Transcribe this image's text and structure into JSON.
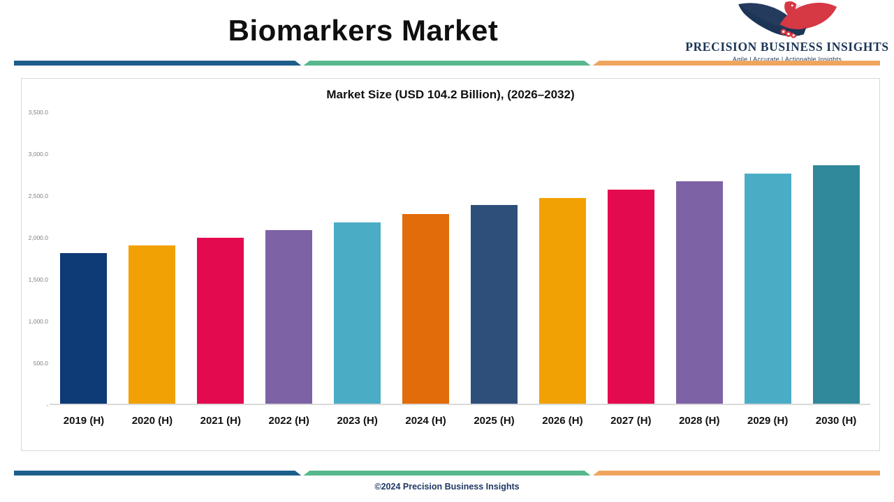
{
  "header": {
    "title": "Biomarkers Market",
    "logo": {
      "icon": "eagle-icon",
      "name": "PRECISION BUSINESS INSIGHTS",
      "tagline": "Agile | Accurate | Actionable Insights"
    }
  },
  "chart": {
    "title": "Market Size (USD 104.2 Billion), (2026–2032)"
  },
  "chart_data": {
    "type": "bar",
    "title": "Market Size (USD 104.2 Billion), (2026–2032)",
    "categories": [
      "2019 (H)",
      "2020 (H)",
      "2021 (H)",
      "2022 (H)",
      "2023 (H)",
      "2024 (H)",
      "2025 (H)",
      "2026 (H)",
      "2027 (H)",
      "2028 (H)",
      "2029 (H)",
      "2030 (H)"
    ],
    "values": [
      1800,
      1890,
      1980,
      2075,
      2170,
      2270,
      2375,
      2460,
      2560,
      2660,
      2750,
      2850
    ],
    "bar_colors": [
      "#0e3a76",
      "#f2a104",
      "#e40a50",
      "#7d63a5",
      "#4bacc6",
      "#e26b0a",
      "#2f4f7b",
      "#f2a104",
      "#e40a50",
      "#7d63a5",
      "#4bacc6",
      "#30899b"
    ],
    "xlabel": "",
    "ylabel": "",
    "ylim": [
      0,
      3500
    ],
    "y_ticks": [
      "3,500.0",
      "3,000.0",
      "2,500.0",
      "2,000.0",
      "1,500.0",
      "1,000.0",
      "500.0",
      "-"
    ],
    "y_tick_values": [
      3500,
      3000,
      2500,
      2000,
      1500,
      1000,
      500,
      0
    ],
    "grid": false,
    "legend": false
  },
  "footer": {
    "copyright": "©2024 Precision Business Insights"
  },
  "colors": {
    "divider_blue": "#1d5e8a",
    "divider_green": "#57b88e",
    "divider_orange": "#f0a55f",
    "logo_navy": "#1c3557",
    "logo_red": "#d63844"
  }
}
